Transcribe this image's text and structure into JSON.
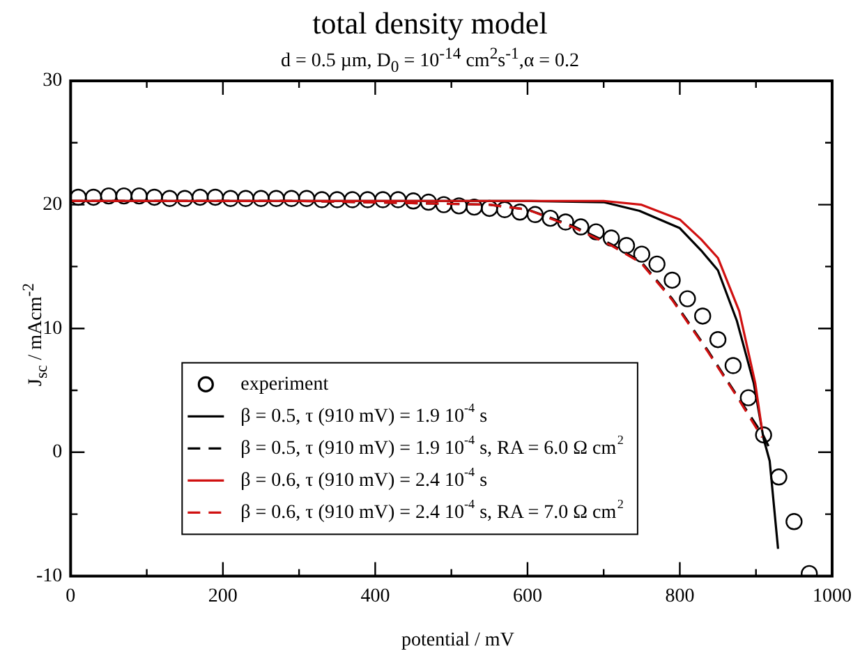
{
  "chart_data": {
    "type": "line",
    "title": "total density model",
    "subtitle": "d = 0.5 µm, D$_{0}$ = 10$^{-14}$ cm$^{2}$s$^{-1}$,α = 0.2",
    "xlabel": "potential / mV",
    "ylabel": "J$_{sc}$ / mAcm$^{-2}$",
    "xlim": [
      0,
      1000
    ],
    "ylim": [
      -10,
      30
    ],
    "xticks": [
      0,
      {
        "value": 100,
        "label": null
      },
      200,
      {
        "value": 300,
        "label": null
      },
      400,
      {
        "value": 500,
        "label": null
      },
      600,
      {
        "value": 700,
        "label": null
      },
      800,
      {
        "value": 900,
        "label": null
      },
      1000
    ],
    "yticks": [
      -10,
      {
        "value": -5,
        "label": null
      },
      0,
      {
        "value": 5,
        "label": null
      },
      10,
      {
        "value": 15,
        "label": null
      },
      20,
      {
        "value": 25,
        "label": null
      },
      30
    ],
    "grid": false,
    "legend": "bottom left",
    "series": [
      {
        "name": "experiment",
        "type": "scatter",
        "marker": "circle",
        "color": "#000000",
        "x": [
          10,
          30,
          50,
          70,
          90,
          110,
          130,
          150,
          170,
          190,
          210,
          230,
          250,
          270,
          290,
          310,
          330,
          350,
          370,
          390,
          410,
          430,
          450,
          470,
          490,
          510,
          530,
          550,
          570,
          590,
          610,
          630,
          650,
          670,
          690,
          710,
          730,
          750,
          770,
          790,
          810,
          830,
          850,
          870,
          890,
          910,
          930,
          950,
          970
        ],
        "values": [
          20.6,
          20.6,
          20.7,
          20.7,
          20.7,
          20.6,
          20.5,
          20.5,
          20.6,
          20.6,
          20.5,
          20.5,
          20.5,
          20.5,
          20.5,
          20.5,
          20.4,
          20.4,
          20.4,
          20.4,
          20.4,
          20.4,
          20.3,
          20.2,
          20.0,
          19.9,
          19.8,
          19.7,
          19.6,
          19.4,
          19.2,
          18.9,
          18.6,
          18.2,
          17.8,
          17.3,
          16.7,
          16.0,
          15.2,
          13.9,
          12.4,
          11.0,
          9.1,
          7.0,
          4.4,
          1.4,
          -2.0,
          -5.6,
          -9.8
        ]
      },
      {
        "name": "β = 0.5, τ (910 mV) = 1.9 10$^{-4}$ s",
        "type": "line",
        "line_style": "solid",
        "color": "#000000",
        "x": [
          0,
          300,
          600,
          700,
          747,
          800,
          828,
          850,
          875,
          897,
          910,
          918,
          929
        ],
        "values": [
          20.3,
          20.3,
          20.3,
          20.2,
          19.5,
          18.1,
          16.3,
          14.7,
          10.6,
          5.6,
          1.1,
          -0.7,
          -7.8
        ]
      },
      {
        "name": "β = 0.5, τ (910 mV) = 1.9 10$^{-4}$ s, RA = 6.0 Ω cm$^{2}$",
        "type": "line",
        "line_style": "dashed",
        "color": "#000000",
        "x": [
          0,
          300,
          550,
          600,
          659,
          710,
          749,
          790,
          837,
          878,
          910,
          918
        ],
        "values": [
          20.3,
          20.3,
          20.0,
          19.6,
          18.3,
          16.8,
          15.4,
          12.4,
          8.2,
          4.3,
          1.3,
          0.3
        ]
      },
      {
        "name": "β = 0.6, τ (910 mV) = 2.4 10$^{-4}$ s",
        "type": "line",
        "line_style": "solid",
        "color": "#d01010",
        "x": [
          0,
          300,
          600,
          700,
          749,
          800,
          828,
          850,
          878,
          899,
          908
        ],
        "values": [
          20.3,
          20.3,
          20.3,
          20.3,
          20.0,
          18.8,
          17.2,
          15.7,
          11.4,
          5.6,
          1.8
        ]
      },
      {
        "name": "β = 0.6, τ (910 mV) = 2.4 10$^{-4}$ s, RA = 7.0 Ω cm$^{2}$",
        "type": "line",
        "line_style": "dashed",
        "color": "#d01010",
        "x": [
          0,
          300,
          550,
          600,
          659,
          710,
          749,
          790,
          837,
          878,
          908
        ],
        "values": [
          20.3,
          20.3,
          20.0,
          19.6,
          18.2,
          16.7,
          15.3,
          12.3,
          8.1,
          4.2,
          1.2
        ]
      }
    ]
  }
}
